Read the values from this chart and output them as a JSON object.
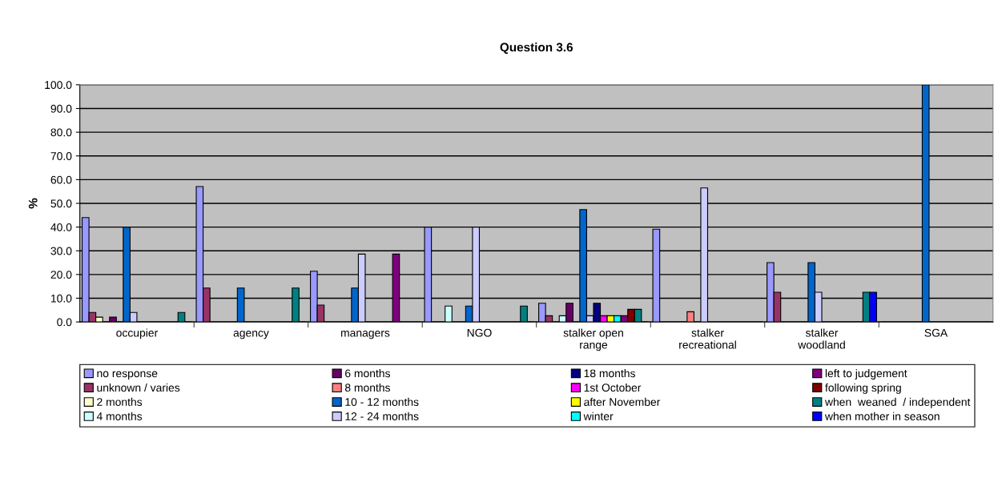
{
  "chart_data": {
    "type": "bar",
    "title": "Question 3.6",
    "ylabel": "%",
    "categories": [
      "occupier",
      "agency",
      "managers",
      "NGO",
      "stalker open\nrange",
      "stalker\nrecreational",
      "stalker\nwoodland",
      "SGA"
    ],
    "series": [
      {
        "name": "no response",
        "color": "#9999ff",
        "values": [
          44,
          57.1,
          21.4,
          40,
          7.9,
          39.1,
          25,
          0
        ]
      },
      {
        "name": "unknown / varies",
        "color": "#993366",
        "values": [
          4,
          14.3,
          7.1,
          0,
          2.6,
          0,
          12.5,
          0
        ]
      },
      {
        "name": "2 months",
        "color": "#ffffcc",
        "values": [
          2,
          0,
          0,
          0,
          0,
          0,
          0,
          0
        ]
      },
      {
        "name": "4 months",
        "color": "#ccffff",
        "values": [
          0,
          0,
          0,
          6.7,
          2.6,
          0,
          0,
          0
        ]
      },
      {
        "name": "6 months",
        "color": "#660066",
        "values": [
          2,
          0,
          0,
          0,
          7.9,
          0,
          0,
          0
        ]
      },
      {
        "name": "8 months",
        "color": "#ff8080",
        "values": [
          0,
          0,
          0,
          0,
          0,
          4.3,
          0,
          0
        ]
      },
      {
        "name": "10 - 12 months",
        "color": "#0066cc",
        "values": [
          40,
          14.3,
          14.3,
          6.7,
          47.4,
          0,
          25,
          100
        ]
      },
      {
        "name": "12 - 24 months",
        "color": "#ccccff",
        "values": [
          4,
          0,
          28.6,
          40,
          2.6,
          56.5,
          12.5,
          0
        ]
      },
      {
        "name": "18 months",
        "color": "#000080",
        "values": [
          0,
          0,
          0,
          0,
          7.9,
          0,
          0,
          0
        ]
      },
      {
        "name": "1st October",
        "color": "#ff00ff",
        "values": [
          0,
          0,
          0,
          0,
          2.6,
          0,
          0,
          0
        ]
      },
      {
        "name": "after November",
        "color": "#ffff00",
        "values": [
          0,
          0,
          0,
          0,
          2.6,
          0,
          0,
          0
        ]
      },
      {
        "name": "winter",
        "color": "#00ffff",
        "values": [
          0,
          0,
          0,
          0,
          2.6,
          0,
          0,
          0
        ]
      },
      {
        "name": "left to judgement",
        "color": "#800080",
        "values": [
          0,
          0,
          28.6,
          0,
          2.6,
          0,
          0,
          0
        ]
      },
      {
        "name": "following spring",
        "color": "#800000",
        "values": [
          0,
          0,
          0,
          0,
          5.3,
          0,
          0,
          0
        ]
      },
      {
        "name": "when  weaned  / independent",
        "color": "#008080",
        "values": [
          4,
          14.3,
          0,
          6.7,
          5.3,
          0,
          12.5,
          0
        ]
      },
      {
        "name": "when mother in season",
        "color": "#0000ff",
        "values": [
          0,
          0,
          0,
          0,
          0,
          0,
          12.5,
          0
        ]
      }
    ],
    "ylim": [
      0,
      100
    ],
    "yticks": [
      {
        "value": 0,
        "label": "0.0"
      },
      {
        "value": 10,
        "label": "10.0"
      },
      {
        "value": 20,
        "label": "20.0"
      },
      {
        "value": 30,
        "label": "30.0"
      },
      {
        "value": 40,
        "label": "40.0"
      },
      {
        "value": 50,
        "label": "50.0"
      },
      {
        "value": 60,
        "label": "60.0"
      },
      {
        "value": 70,
        "label": "70.0"
      },
      {
        "value": 80,
        "label": "80.0"
      },
      {
        "value": 90,
        "label": "90.0"
      },
      {
        "value": 100,
        "label": "100.0"
      }
    ],
    "grid": "y",
    "legend": "bottom"
  }
}
